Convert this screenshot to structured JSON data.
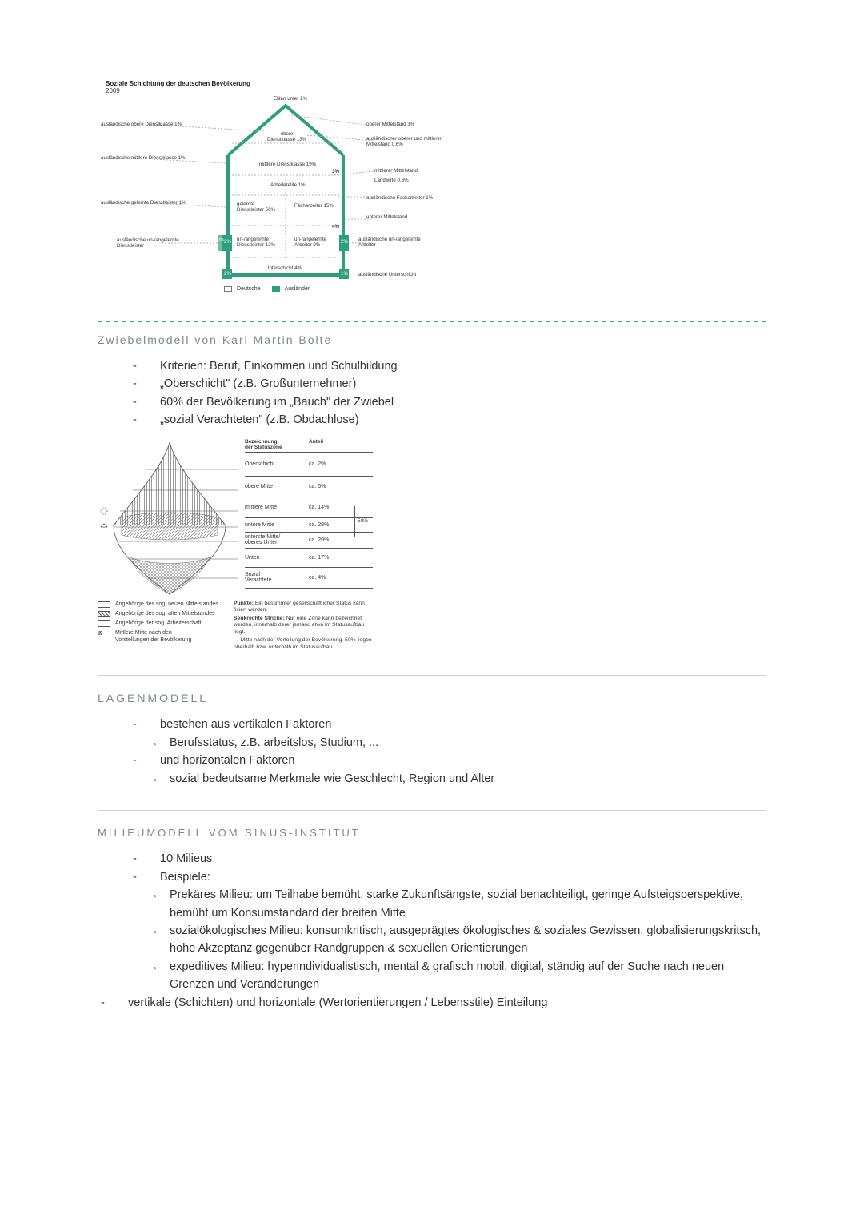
{
  "house": {
    "title": "Soziale Schichtung der deutschen Bevölkerung",
    "year": "2009",
    "colors": {
      "accent": "#2f9e7c",
      "line": "#888888",
      "text": "#333333"
    },
    "apex": "Eliten unter 1%",
    "leftLabels": [
      "ausländische obere Dienstklasse 1%",
      "ausländische mittlere Dienstklasse 1%",
      "ausländische gelernte Dienstleister 1%",
      "ausländische un-/angelernte\nDienstleister"
    ],
    "rightLabels": [
      "oberer Mittelstand 3%",
      "ausländischer oberer und mittlerer\nMittelstand 0,6%",
      "mittlerer Mittelstand",
      "Landwirte 0,6%",
      "ausländische Facharbeiter 1%",
      "unterer Mittelstand",
      "ausländische un-/angelernte\nArbeiter",
      "ausländische Unterschicht"
    ],
    "inner": [
      "obere\nDienstklasse 13%",
      "mittlere Dienstklasse 19%",
      "Arbeiterelite 1%",
      "gelernte\nDienstleister 50%",
      "Facharbeiter 15%",
      "un-/angelernte\nDienstleister 12%",
      "un-/angelernte\nArbeiter 9%",
      "Unterschicht 4%"
    ],
    "midRight": [
      "3%",
      "4%"
    ],
    "sideBadges": [
      "2%",
      "7%",
      "2%",
      "2%",
      "1%"
    ],
    "legend": {
      "left": "Deutsche",
      "right": "Ausländer"
    }
  },
  "sec1": {
    "title": "Zwiebelmodell von Karl Martin Bolte",
    "bullets": [
      "Kriterien: Beruf, Einkommen und Schulbildung",
      "„Oberschicht\" (z.B. Großunternehmer)",
      "60% der Bevölkerung im „Bauch\" der Zwiebel",
      "„sozial Verachteten\" (z.B. Obdachlose)"
    ]
  },
  "onion": {
    "headers": [
      "Bezeichnung\nder Statuszone",
      "Anteil"
    ],
    "rows": [
      {
        "label": "Oberschicht",
        "pct": "ca. 2%"
      },
      {
        "label": "obere Mitte",
        "pct": "ca. 5%"
      },
      {
        "label": "mittlere Mitte",
        "pct": "ca. 14%"
      },
      {
        "label": "untere Mitte",
        "pct": "ca. 29%"
      },
      {
        "label": "unterste Mitte/\noberes Unten",
        "pct": "ca. 29%"
      },
      {
        "label": "Unten",
        "pct": "ca. 17%"
      },
      {
        "label": "Sozial\nVerachtete",
        "pct": "ca. 4%"
      }
    ],
    "brace": "58%",
    "fillPatterns": {
      "neuerMittelstand": "#ffffff",
      "alterMittelstand": "diag",
      "arbeiterschaft": "#ffffff"
    },
    "legendLeft": [
      "Angehörige des sog. neuen Mittelstandes",
      "Angehörige des sog. alten Mittelstandes",
      "Angehörige der sog. Arbeiterschaft",
      "Mittlere Mitte nach den\nVorstellungen der Bevölkerung"
    ],
    "legendRight": [
      {
        "h": "Punkte:",
        "t": "Ein bestimmter gesellschaftlicher Status kann fixiert werden."
      },
      {
        "h": "Senkrechte Striche:",
        "t": "Nur eine Zone kann bezeichnet werden, innerhalb derer jemand etwa im Statusaufbau liegt."
      },
      {
        "h": "",
        "t": "Mitte nach der Verteilung der Bevölkerung. 50% liegen oberhalb bzw. unterhalb im Statusaufbau."
      }
    ]
  },
  "sec2": {
    "title": "LAGENMODELL",
    "items": [
      {
        "text": "bestehen aus vertikalen Faktoren",
        "sub": [
          "Berufsstatus, z.B. arbeitslos, Studium, ..."
        ]
      },
      {
        "text": "und horizontalen Faktoren",
        "sub": [
          "sozial bedeutsame Merkmale wie Geschlecht, Region und Alter"
        ]
      }
    ]
  },
  "sec3": {
    "title": "MILIEUMODELL VOM SINUS-INSTITUT",
    "items": [
      {
        "text": "10 Milieus"
      },
      {
        "text": "Beispiele:",
        "sub": [
          "Prekäres Milieu: um Teilhabe bemüht, starke Zukunftsängste, sozial benachteiligt, geringe Aufsteigsperspektive, bemüht um Konsumstandard der breiten Mitte",
          "sozialökologisches Milieu: konsumkritisch, ausgeprägtes ökologisches & soziales Gewissen, globalisierungskritsch, hohe Akzeptanz gegenüber Randgruppen & sexuellen Orientierungen",
          "expeditives Milieu: hyperindividualistisch, mental & grafisch mobil, digital, ständig auf der Suche nach neuen Grenzen und Veränderungen"
        ]
      }
    ],
    "tail": "vertikale (Schichten) und horizontale (Wertorientierungen / Lebensstile) Einteilung"
  }
}
